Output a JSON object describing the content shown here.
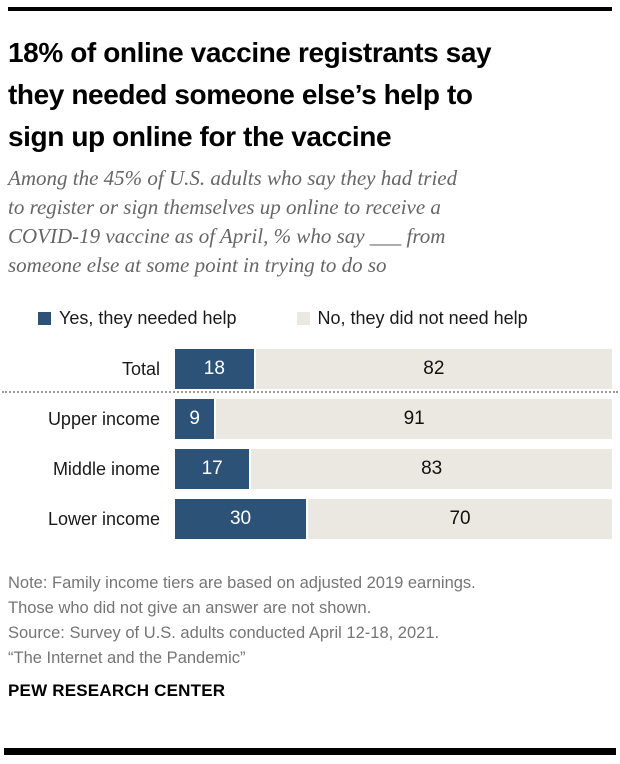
{
  "header": {
    "title_lines": [
      "18% of online vaccine registrants say",
      "they needed someone else’s help to",
      "sign up online for the vaccine"
    ],
    "subtitle_lines": [
      "Among the 45% of U.S. adults who say they had tried",
      "to register or sign themselves up online to receive a",
      "COVID-19 vaccine as of April, % who say ___ from",
      "someone else at some point in trying to do so"
    ]
  },
  "legend": {
    "items": [
      {
        "label": "Yes, they needed help",
        "color": "#2C5278"
      },
      {
        "label": "No, they did not need help",
        "color": "#EAE8E1"
      }
    ]
  },
  "chart_data": {
    "type": "bar",
    "stacked": true,
    "orientation": "horizontal",
    "unit": "%",
    "title": "18% of online vaccine registrants say they needed someone else’s help to sign up online for the vaccine",
    "subtitle": "Among the 45% of U.S. adults who say they had tried to register or sign themselves up online to receive a COVID-19 vaccine as of April, % who say ___ from someone else at some point in trying to do so",
    "categories": [
      "Total",
      "Upper income",
      "Middle inome",
      "Lower income"
    ],
    "series": [
      {
        "name": "Yes, they needed help",
        "color": "#2C5278",
        "values": [
          18,
          9,
          17,
          30
        ]
      },
      {
        "name": "No, they did not need help",
        "color": "#EAE8E1",
        "values": [
          82,
          91,
          83,
          70
        ]
      }
    ],
    "xlim": [
      0,
      100
    ],
    "legend_position": "top",
    "value_labels": "inside",
    "divider_after_category": "Total"
  },
  "footnote": {
    "lines": [
      "Note: Family income tiers are based on adjusted 2019 earnings.",
      "Those who did not give an answer are not shown.",
      "Source: Survey of U.S. adults conducted April 12-18, 2021.",
      "“The Internet and the Pandemic”"
    ]
  },
  "brand": {
    "label": "PEW RESEARCH CENTER"
  }
}
